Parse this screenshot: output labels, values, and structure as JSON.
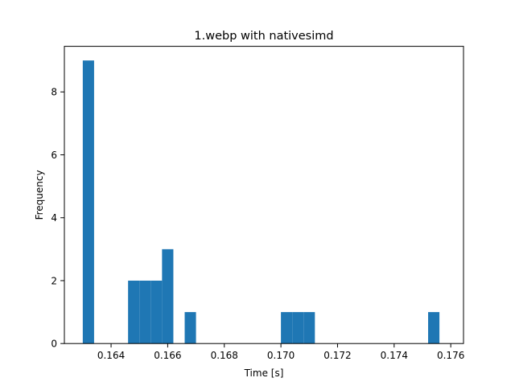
{
  "chart_data": {
    "type": "bar",
    "title": "1.webp with nativesimd",
    "xlabel": "Time [s]",
    "ylabel": "Frequency",
    "xlim": [
      0.16235,
      0.17645
    ],
    "ylim": [
      0,
      9.45
    ],
    "x_ticks": [
      0.164,
      0.166,
      0.168,
      0.17,
      0.172,
      0.174,
      0.176
    ],
    "x_tick_labels": [
      "0.164",
      "0.166",
      "0.168",
      "0.170",
      "0.172",
      "0.174",
      "0.176"
    ],
    "y_ticks": [
      0,
      2,
      4,
      6,
      8
    ],
    "y_tick_labels": [
      "0",
      "2",
      "4",
      "6",
      "8"
    ],
    "bar_color": "#1f77b4",
    "bars": [
      {
        "x0": 0.163,
        "x1": 0.1634,
        "count": 9
      },
      {
        "x0": 0.1634,
        "x1": 0.1636,
        "count": 0
      },
      {
        "x0": 0.1636,
        "x1": 0.1646,
        "count": 0
      },
      {
        "x0": 0.1646,
        "x1": 0.165,
        "count": 2
      },
      {
        "x0": 0.165,
        "x1": 0.1654,
        "count": 2
      },
      {
        "x0": 0.1654,
        "x1": 0.1658,
        "count": 2
      },
      {
        "x0": 0.1658,
        "x1": 0.1662,
        "count": 3
      },
      {
        "x0": 0.1662,
        "x1": 0.1666,
        "count": 0
      },
      {
        "x0": 0.1666,
        "x1": 0.167,
        "count": 1
      },
      {
        "x0": 0.17,
        "x1": 0.1704,
        "count": 1
      },
      {
        "x0": 0.1704,
        "x1": 0.1708,
        "count": 1
      },
      {
        "x0": 0.1708,
        "x1": 0.1712,
        "count": 1
      },
      {
        "x0": 0.1752,
        "x1": 0.1756,
        "count": 1
      }
    ],
    "grid": false,
    "legend": "none"
  }
}
